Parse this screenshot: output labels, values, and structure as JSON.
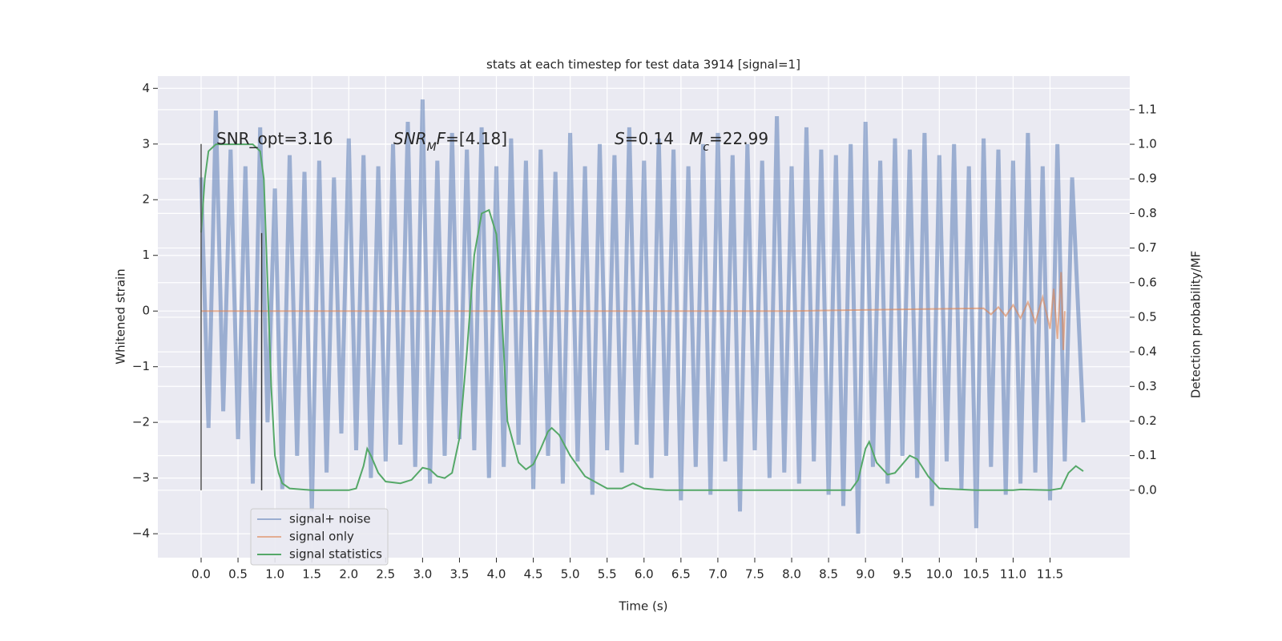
{
  "chart_data": {
    "type": "line",
    "title": "stats at each timestep for test data 3914 [signal=1]",
    "xlabel": "Time (s)",
    "ylabel": "Whitened strain",
    "y2label": "Detection probability/MF",
    "xlim": [
      -0.586,
      12.58
    ],
    "ylim": [
      -4.43,
      4.22
    ],
    "y2lim": [
      -0.195,
      1.197
    ],
    "xticks": [
      {
        "value": 0,
        "label": "0.0"
      },
      0.5,
      {
        "value": 1,
        "label": "1.0"
      },
      1.5,
      {
        "value": 2,
        "label": "2.0"
      },
      2.5,
      {
        "value": 3,
        "label": "3.0"
      },
      3.5,
      {
        "value": 4,
        "label": "4.0"
      },
      4.5,
      {
        "value": 5,
        "label": "5.0"
      },
      5.5,
      {
        "value": 6,
        "label": "6.0"
      },
      6.5,
      {
        "value": 7,
        "label": "7.0"
      },
      7.5,
      {
        "value": 8,
        "label": "8.0"
      },
      8.5,
      {
        "value": 9,
        "label": "9.0"
      },
      9.5,
      {
        "value": 10,
        "label": "10.0"
      },
      10.5,
      {
        "value": 11,
        "label": "11.0"
      },
      11.5
    ],
    "yticks": [
      {
        "value": -4,
        "label": "−4"
      },
      {
        "value": -3,
        "label": "−3"
      },
      {
        "value": -2,
        "label": "−2"
      },
      {
        "value": -1,
        "label": "−1"
      },
      0,
      1,
      2,
      3,
      4
    ],
    "y2ticks": [
      {
        "value": 0,
        "label": "0.0"
      },
      0.1,
      0.2,
      0.3,
      0.4,
      0.5,
      0.6,
      0.7,
      0.8,
      0.9,
      {
        "value": 1,
        "label": "1.0"
      },
      1.1
    ],
    "grid": true,
    "legend": "lower left",
    "series": [
      {
        "name": "signal+ noise",
        "color": "#4c72b0",
        "alpha": 0.5,
        "x": [
          0,
          0.1,
          0.2,
          0.3,
          0.4,
          0.5,
          0.6,
          0.7,
          0.8,
          0.9,
          1,
          1.1,
          1.2,
          1.3,
          1.4,
          1.5,
          1.6,
          1.7,
          1.8,
          1.9,
          2,
          2.1,
          2.2,
          2.3,
          2.4,
          2.5,
          2.6,
          2.7,
          2.8,
          2.9,
          3,
          3.1,
          3.2,
          3.3,
          3.4,
          3.5,
          3.6,
          3.7,
          3.8,
          3.9,
          4,
          4.1,
          4.2,
          4.3,
          4.4,
          4.5,
          4.6,
          4.7,
          4.8,
          4.9,
          5,
          5.1,
          5.2,
          5.3,
          5.4,
          5.5,
          5.6,
          5.7,
          5.8,
          5.9,
          6,
          6.1,
          6.2,
          6.3,
          6.4,
          6.5,
          6.6,
          6.7,
          6.8,
          6.9,
          7,
          7.1,
          7.2,
          7.3,
          7.4,
          7.5,
          7.6,
          7.7,
          7.8,
          7.9,
          8,
          8.1,
          8.2,
          8.3,
          8.4,
          8.5,
          8.6,
          8.7,
          8.8,
          8.9,
          9,
          9.1,
          9.2,
          9.3,
          9.4,
          9.5,
          9.6,
          9.7,
          9.8,
          9.9,
          10,
          10.1,
          10.2,
          10.3,
          10.4,
          10.5,
          10.6,
          10.7,
          10.8,
          10.9,
          11,
          11.1,
          11.2,
          11.3,
          11.4,
          11.5,
          11.6,
          11.7,
          11.8,
          11.95
        ],
        "values": [
          2.4,
          -2.1,
          3.6,
          -1.8,
          2.9,
          -2.3,
          2.6,
          -3.1,
          3.3,
          -2.0,
          2.2,
          -3.2,
          2.8,
          -2.6,
          2.5,
          -3.6,
          2.7,
          -2.9,
          2.4,
          -2.2,
          3.1,
          -2.5,
          2.8,
          -3.0,
          2.6,
          -2.7,
          3.0,
          -2.4,
          3.4,
          -2.8,
          3.8,
          -3.1,
          2.7,
          -2.6,
          3.2,
          -2.3,
          2.9,
          -2.5,
          3.3,
          -3.0,
          2.6,
          -2.8,
          3.1,
          -2.4,
          2.7,
          -3.2,
          2.9,
          -2.6,
          2.5,
          -3.1,
          3.2,
          -2.7,
          2.6,
          -3.3,
          3.0,
          -2.5,
          2.8,
          -2.9,
          3.3,
          -2.4,
          2.7,
          -3.0,
          3.1,
          -2.6,
          2.9,
          -3.4,
          2.6,
          -2.8,
          3.0,
          -3.3,
          3.2,
          -2.7,
          2.8,
          -3.6,
          3.0,
          -2.5,
          2.7,
          -3.0,
          3.5,
          -2.9,
          2.6,
          -3.1,
          3.3,
          -2.7,
          2.9,
          -3.3,
          2.8,
          -3.5,
          3.0,
          -4.0,
          3.4,
          -2.8,
          2.7,
          -3.1,
          3.1,
          -2.6,
          2.9,
          -3.0,
          3.2,
          -3.5,
          2.8,
          -2.7,
          3.0,
          -3.2,
          2.6,
          -3.9,
          3.1,
          -2.8,
          2.9,
          -3.3,
          2.7,
          -3.1,
          3.2,
          -2.9,
          2.6,
          -3.4,
          3.0,
          -2.7,
          2.4,
          -2.0
        ]
      },
      {
        "name": "signal only",
        "color": "#dd8452",
        "alpha": 0.6,
        "x": [
          0,
          8,
          10.6,
          10.7,
          10.8,
          10.9,
          11,
          11.1,
          11.2,
          11.3,
          11.4,
          11.5,
          11.55,
          11.6,
          11.65,
          11.68,
          11.7
        ],
        "values": [
          0,
          0,
          0.05,
          -0.06,
          0.07,
          -0.09,
          0.11,
          -0.13,
          0.16,
          -0.2,
          0.25,
          -0.32,
          0.4,
          -0.5,
          0.7,
          -0.7,
          0
        ]
      },
      {
        "name": "signal statistics",
        "color": "#55a868",
        "axis": "y2",
        "x": [
          0,
          0.05,
          0.1,
          0.2,
          0.5,
          0.7,
          0.8,
          0.85,
          0.9,
          0.95,
          1,
          1.05,
          1.1,
          1.2,
          1.5,
          2,
          2.1,
          2.2,
          2.25,
          2.3,
          2.4,
          2.5,
          2.7,
          2.85,
          3,
          3.1,
          3.2,
          3.3,
          3.4,
          3.5,
          3.6,
          3.7,
          3.8,
          3.9,
          4,
          4.05,
          4.1,
          4.15,
          4.2,
          4.3,
          4.4,
          4.5,
          4.6,
          4.7,
          4.75,
          4.85,
          5,
          5.2,
          5.5,
          5.7,
          5.85,
          6,
          6.3,
          7,
          8,
          8.8,
          8.9,
          9,
          9.05,
          9.15,
          9.3,
          9.4,
          9.6,
          9.7,
          9.85,
          10,
          10.5,
          11,
          11.1,
          11.5,
          11.65,
          11.75,
          11.85,
          11.95
        ],
        "values": [
          0.745,
          0.9,
          0.98,
          1,
          1,
          1,
          0.98,
          0.9,
          0.6,
          0.3,
          0.1,
          0.05,
          0.02,
          0.005,
          0,
          0,
          0.005,
          0.07,
          0.12,
          0.1,
          0.05,
          0.025,
          0.02,
          0.03,
          0.065,
          0.06,
          0.04,
          0.035,
          0.05,
          0.15,
          0.4,
          0.68,
          0.8,
          0.81,
          0.74,
          0.6,
          0.4,
          0.2,
          0.16,
          0.08,
          0.06,
          0.075,
          0.12,
          0.17,
          0.18,
          0.16,
          0.1,
          0.04,
          0.005,
          0.005,
          0.02,
          0.005,
          0,
          0,
          0,
          0,
          0.03,
          0.12,
          0.14,
          0.08,
          0.045,
          0.05,
          0.1,
          0.09,
          0.04,
          0.005,
          0,
          0,
          0.002,
          0,
          0.005,
          0.05,
          0.07,
          0.055
        ]
      }
    ],
    "vlines": [
      {
        "x": 0,
        "ymin": -3.22,
        "ymax": 3.0,
        "color": "#555555"
      },
      {
        "x": 0.82,
        "ymin": -3.22,
        "ymax": 1.4,
        "color": "#333333"
      }
    ],
    "annotations": [
      [
        {
          "text": "SNR_opt=3.16"
        }
      ],
      [
        {
          "text": "SNR",
          "style": "italic"
        },
        {
          "text": "M",
          "style": "sub"
        },
        {
          "text": "F",
          "style": "italic"
        },
        {
          "text": "=[4.18]"
        }
      ],
      [
        {
          "text": "S",
          "style": "italic"
        },
        {
          "text": "=0.14   "
        },
        {
          "text": "M",
          "style": "italic"
        },
        {
          "text": "c",
          "style": "sub"
        },
        {
          "text": "=22.99"
        }
      ]
    ]
  }
}
